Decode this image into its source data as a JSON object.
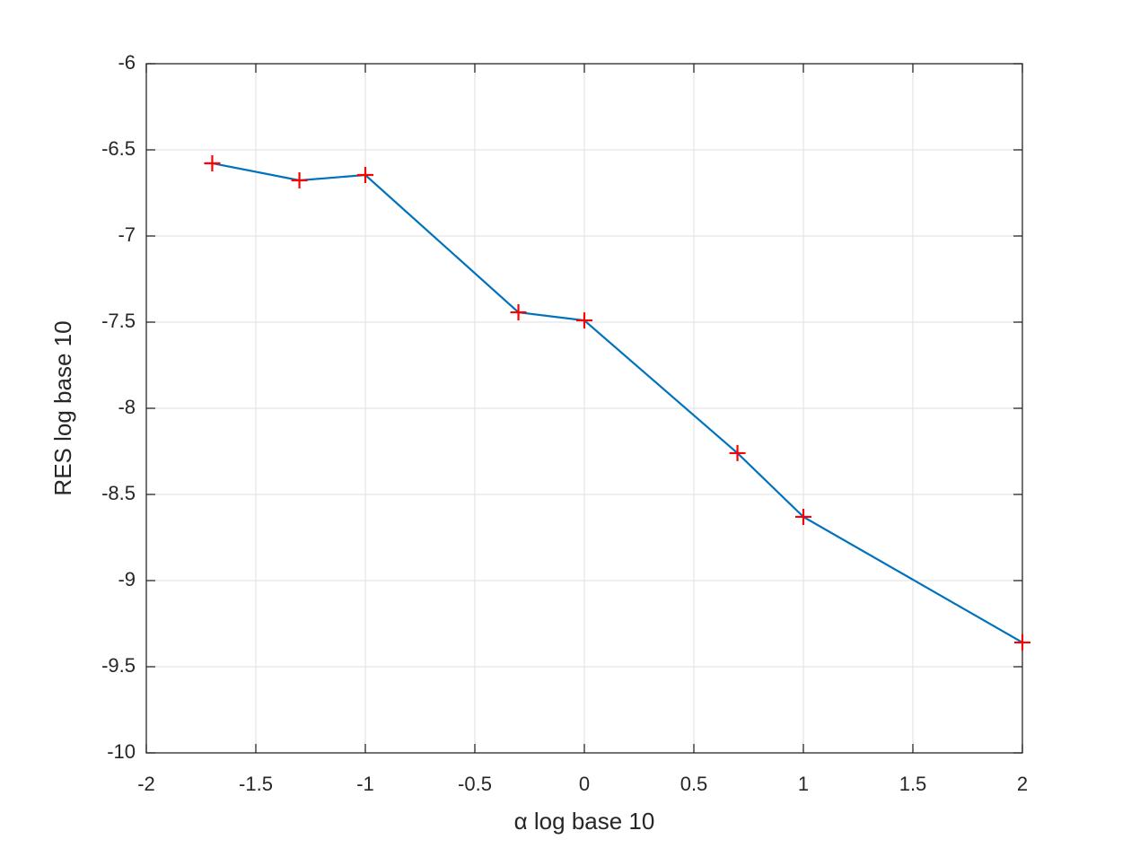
{
  "chart_data": {
    "type": "line",
    "xlabel": "α log base 10",
    "ylabel": "RES log base 10",
    "x": [
      -1.699,
      -1.301,
      -1,
      -0.301,
      0,
      0.699,
      1,
      2
    ],
    "series": [
      {
        "color": "#0072bd",
        "marker": "+",
        "marker_color": "#ff0000",
        "values": [
          -6.578,
          -6.677,
          -6.646,
          -7.443,
          -7.49,
          -8.26,
          -8.63,
          -9.359
        ]
      }
    ],
    "xlim": [
      -2,
      2
    ],
    "xticks": [
      -2,
      -1.5,
      -1,
      -0.5,
      0,
      0.5,
      1,
      1.5,
      2
    ],
    "ylim": [
      -10,
      -6
    ],
    "yticks": [
      -10,
      -9.5,
      -9,
      -8.5,
      -8,
      -7.5,
      -7,
      -6.5,
      -6
    ],
    "grid": true
  }
}
